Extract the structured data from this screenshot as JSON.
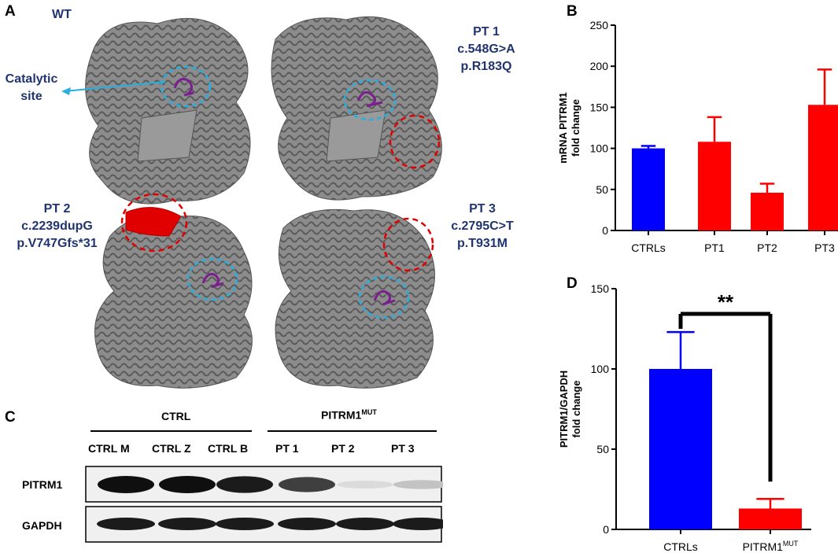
{
  "panels": {
    "a": "A",
    "b": "B",
    "c": "C",
    "d": "D"
  },
  "structures": {
    "wt": "WT",
    "catalytic_site": "Catalytic\nsite",
    "pt1": {
      "name": "PT 1",
      "cdna": "c.548G>A",
      "protein": "p.R183Q"
    },
    "pt2": {
      "name": "PT 2",
      "cdna": "c.2239dupG",
      "protein": "p.V747Gfs*31"
    },
    "pt3": {
      "name": "PT 3",
      "cdna": "c.2795C>T",
      "protein": "p.T931M"
    }
  },
  "blot": {
    "group_ctrl": "CTRL",
    "group_mut": "PITRM1",
    "group_mut_sup": "MUT",
    "lanes": [
      "CTRL M",
      "CTRL Z",
      "CTRL B",
      "PT 1",
      "PT 2",
      "PT 3"
    ],
    "rows": [
      "PITRM1",
      "GAPDH"
    ],
    "pitrm1_intensity": [
      1.0,
      1.0,
      0.95,
      0.8,
      0.15,
      0.25
    ],
    "gapdh_intensity": [
      0.95,
      0.95,
      0.95,
      0.95,
      0.95,
      0.95
    ]
  },
  "colors": {
    "ctrl": "#0000ff",
    "patient": "#ff0000",
    "navy_text": "#1f3470",
    "cyan": "#29aee0",
    "purple": "#7b1f8e"
  },
  "chart_data": [
    {
      "type": "bar",
      "panel": "B",
      "categories": [
        "CTRLs",
        "PT1",
        "PT2",
        "PT3"
      ],
      "values": [
        100,
        108,
        46,
        153
      ],
      "errors": [
        3,
        30,
        11,
        43
      ],
      "ylabel": "mRNA PITRM1\nfold change",
      "ylim": [
        0,
        250
      ],
      "yticks": [
        0,
        50,
        100,
        150,
        200,
        250
      ]
    },
    {
      "type": "bar",
      "panel": "D",
      "categories": [
        "CTRLs",
        "PITRM1"
      ],
      "category_sup": [
        "",
        "MUT"
      ],
      "values": [
        100,
        13
      ],
      "errors": [
        23,
        6
      ],
      "ylabel": "PITRM1/GAPDH\nfold change",
      "ylim": [
        0,
        150
      ],
      "yticks": [
        0,
        50,
        100,
        150
      ],
      "significance": "**"
    }
  ]
}
